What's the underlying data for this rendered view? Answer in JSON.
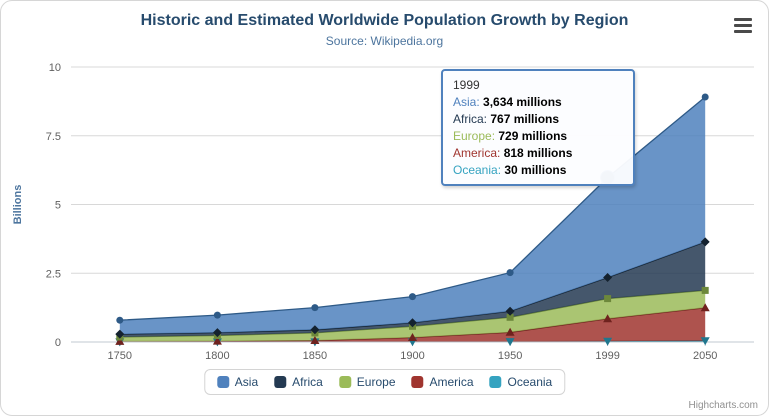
{
  "title": "Historic and Estimated Worldwide Population Growth by Region",
  "subtitle": "Source: Wikipedia.org",
  "credits": "Highcharts.com",
  "hover": {
    "series": "Asia",
    "index": 5
  },
  "tooltip": {
    "category": "1999",
    "rows": [
      {
        "name": "Asia",
        "value": "3,634 millions"
      },
      {
        "name": "Africa",
        "value": "767 millions"
      },
      {
        "name": "Europe",
        "value": "729 millions"
      },
      {
        "name": "America",
        "value": "818 millions"
      },
      {
        "name": "Oceania",
        "value": "30 millions"
      }
    ]
  },
  "chart_data": {
    "type": "area",
    "stacked": true,
    "title": "Historic and Estimated Worldwide Population Growth by Region",
    "subtitle": "Source: Wikipedia.org",
    "categories": [
      1750,
      1800,
      1850,
      1900,
      1950,
      1999,
      2050
    ],
    "series": [
      {
        "name": "Asia",
        "color": "#4F81BD",
        "line": "#2E5A87",
        "marker": "circle",
        "values": [
          502,
          635,
          809,
          947,
          1402,
          3634,
          5268
        ]
      },
      {
        "name": "Africa",
        "color": "#243A52",
        "line": "#14222F",
        "marker": "diamond",
        "values": [
          106,
          107,
          111,
          133,
          221,
          767,
          1766
        ]
      },
      {
        "name": "Europe",
        "color": "#9BBB59",
        "line": "#6D883B",
        "marker": "square",
        "values": [
          163,
          203,
          276,
          408,
          547,
          729,
          628
        ]
      },
      {
        "name": "America",
        "color": "#A0352F",
        "line": "#6F221E",
        "marker": "triangle",
        "values": [
          18,
          31,
          54,
          156,
          339,
          818,
          1201
        ]
      },
      {
        "name": "Oceania",
        "color": "#35A3C0",
        "line": "#20778E",
        "marker": "triangle-down",
        "values": [
          2,
          2,
          2,
          6,
          13,
          30,
          46
        ]
      }
    ],
    "unit": "millions",
    "unit_divisor": 1000,
    "xlabel": "",
    "ylabel": "Billions",
    "yticks": [
      0,
      2.5,
      5,
      7.5,
      10
    ],
    "ylim": [
      0,
      10
    ],
    "grid": true,
    "legend_position": "bottom"
  }
}
